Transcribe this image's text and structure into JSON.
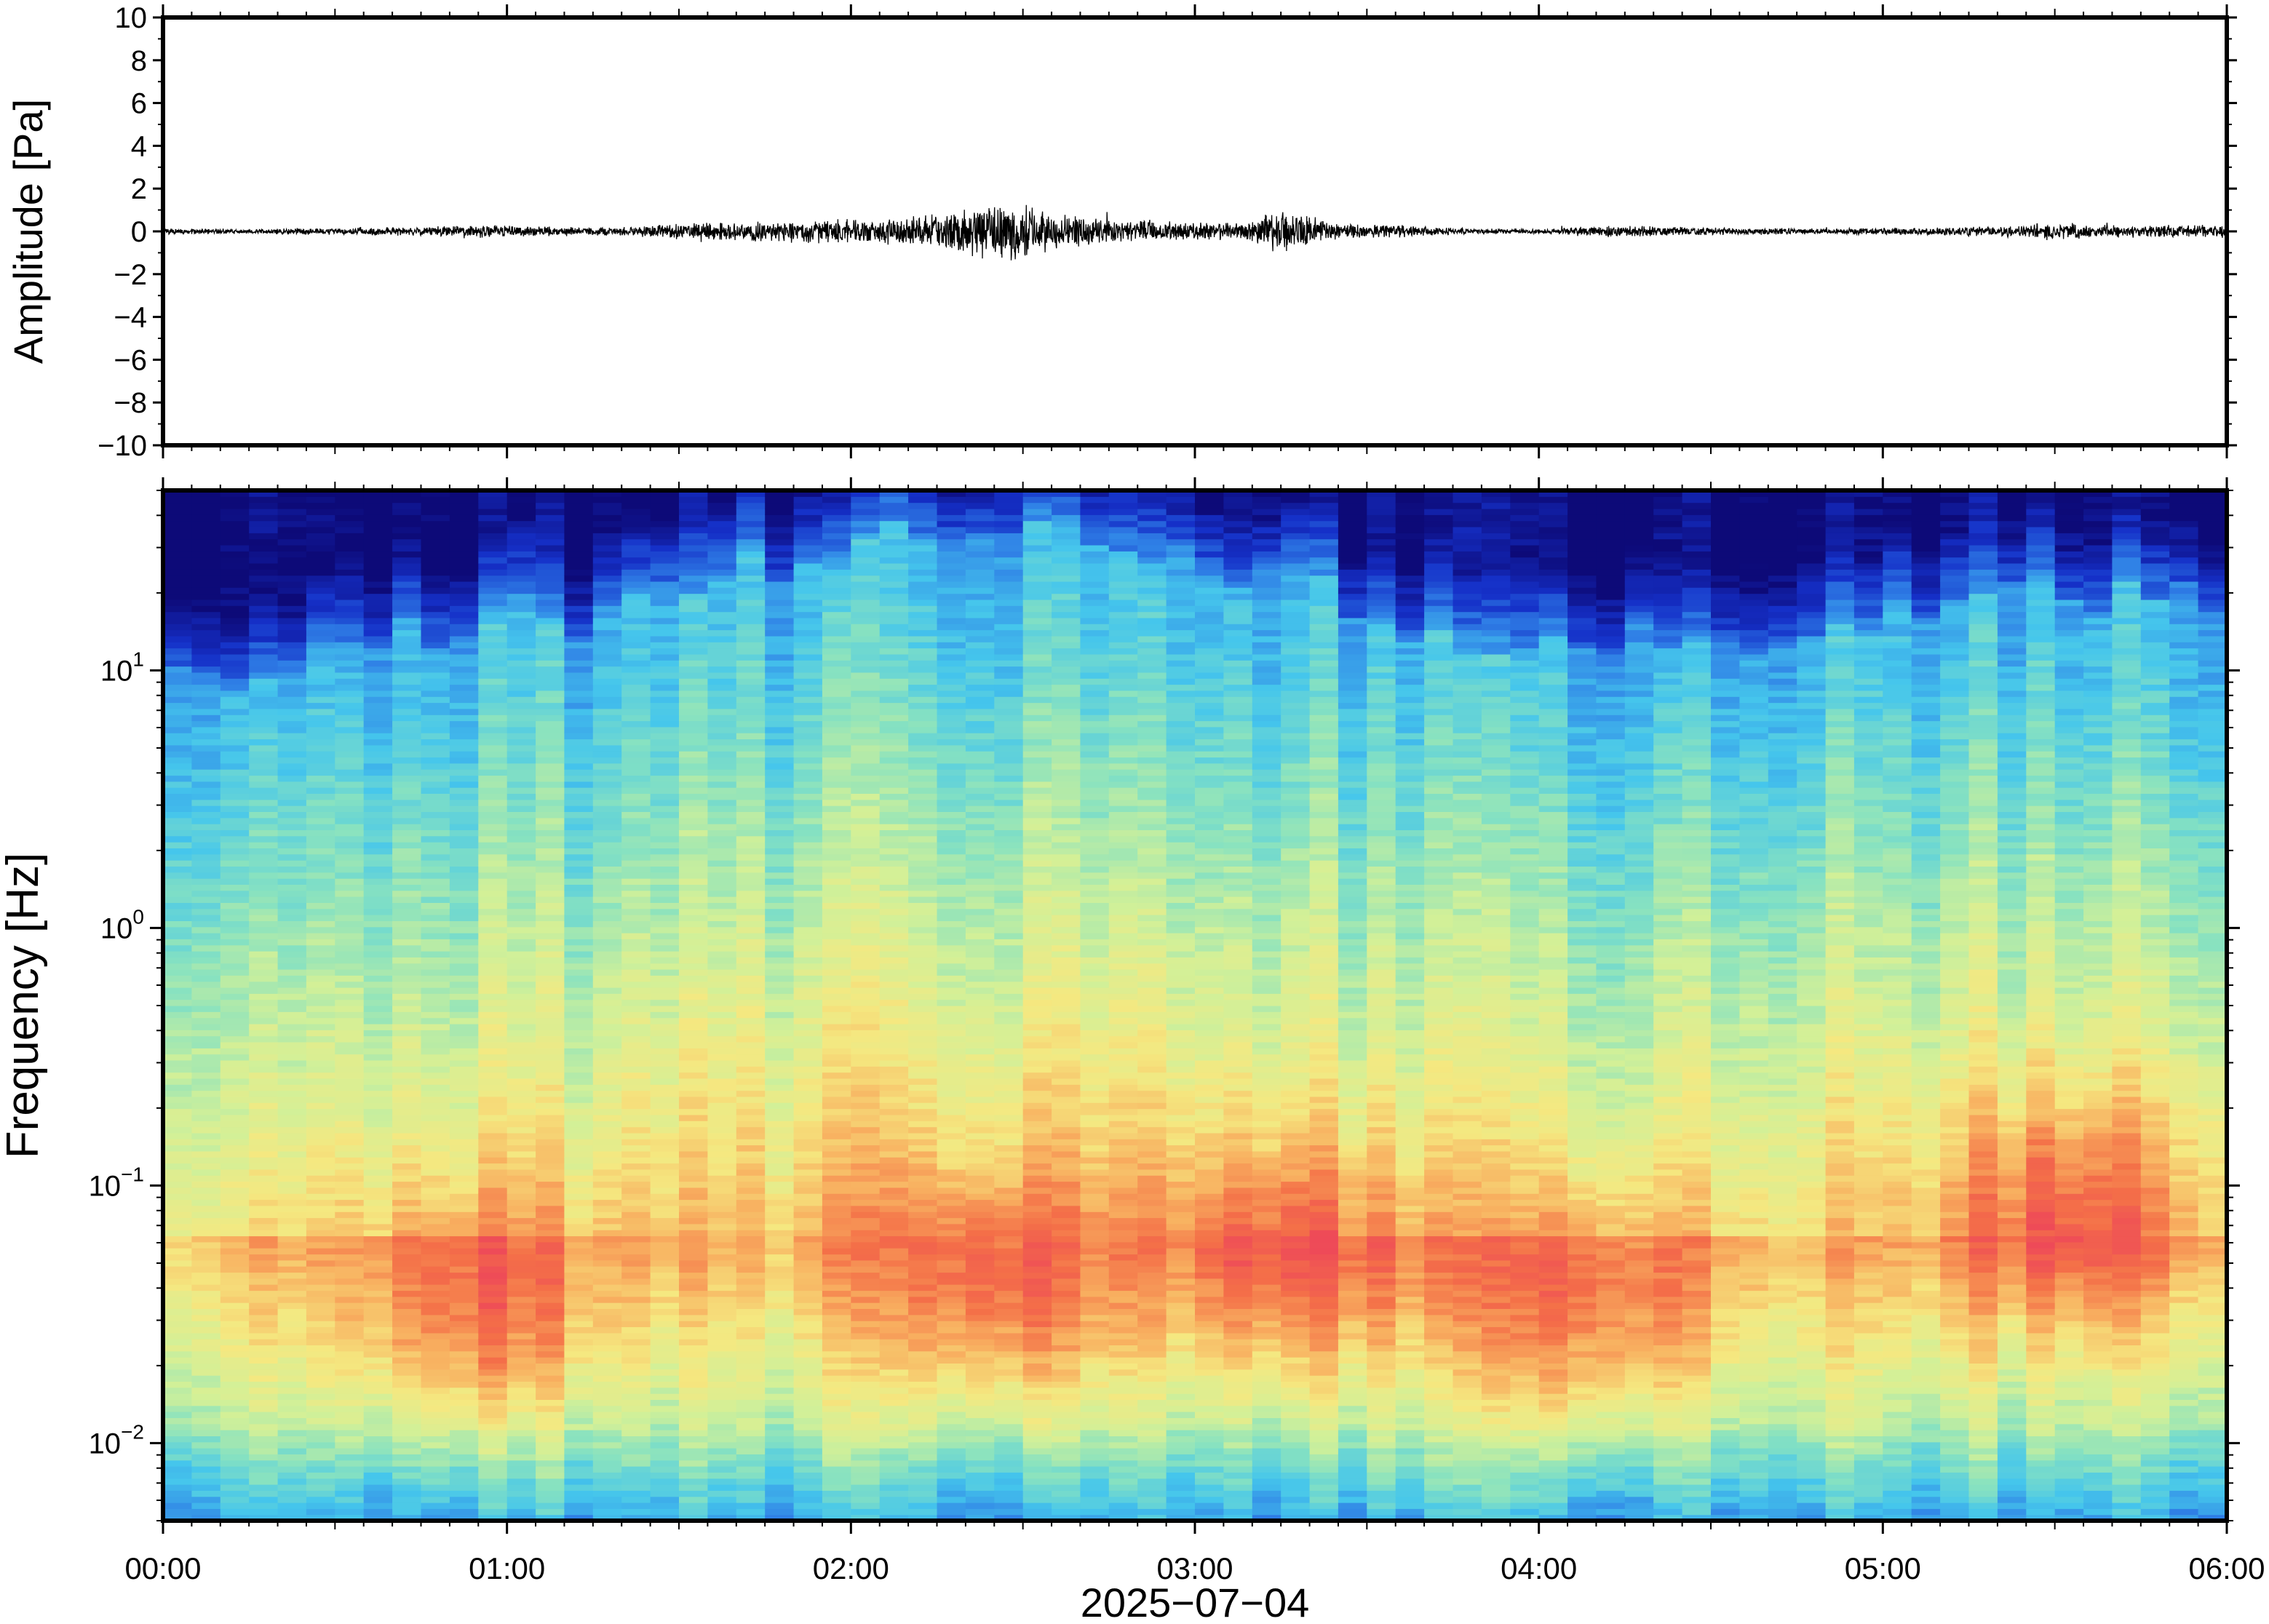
{
  "chart_data": [
    {
      "type": "line",
      "name": "waveform",
      "ylabel": "Amplitude [Pa]",
      "ylim": [
        -10,
        10
      ],
      "yticks": [
        10,
        8,
        6,
        4,
        2,
        0,
        -2,
        -4,
        -6,
        -8,
        -10
      ],
      "ytick_labels": [
        "10",
        "8",
        "6",
        "4",
        "2",
        "0",
        "−2",
        "−4",
        "−6",
        "−8",
        "−10"
      ],
      "x_range_hours": [
        0,
        6
      ],
      "grid": false,
      "series_color": "#000000",
      "envelope": {
        "x_hours": [
          0,
          0.25,
          0.5,
          0.75,
          0.9,
          1.0,
          1.25,
          1.4,
          1.6,
          1.8,
          2.0,
          2.2,
          2.35,
          2.45,
          2.6,
          2.8,
          3.0,
          3.15,
          3.25,
          3.4,
          3.6,
          3.8,
          4.0,
          4.2,
          4.4,
          4.6,
          4.8,
          5.0,
          5.2,
          5.4,
          5.5,
          5.7,
          6.0
        ],
        "amplitude_pa": [
          0.15,
          0.12,
          0.18,
          0.22,
          0.35,
          0.3,
          0.2,
          0.3,
          0.5,
          0.55,
          0.6,
          0.8,
          1.3,
          1.6,
          0.9,
          0.6,
          0.45,
          0.5,
          1.2,
          0.45,
          0.3,
          0.15,
          0.12,
          0.3,
          0.25,
          0.18,
          0.15,
          0.18,
          0.2,
          0.3,
          0.45,
          0.3,
          0.35
        ]
      }
    },
    {
      "type": "heatmap",
      "name": "spectrogram",
      "ylabel": "Frequency [Hz]",
      "yscale": "log",
      "ylim": [
        0.005,
        50
      ],
      "yticks": [
        0.01,
        0.1,
        1,
        10
      ],
      "ytick_labels": [
        {
          "base": "10",
          "exp": "−2"
        },
        {
          "base": "10",
          "exp": "−1"
        },
        {
          "base": "10",
          "exp": "0"
        },
        {
          "base": "10",
          "exp": "1"
        }
      ],
      "xlabel": "2025−07−04",
      "xticks_hours": [
        0,
        1,
        2,
        3,
        4,
        5,
        6
      ],
      "xtick_labels": [
        "00:00",
        "01:00",
        "02:00",
        "03:00",
        "04:00",
        "05:00",
        "06:00"
      ],
      "colormap": [
        "#0d0a78",
        "#1530c8",
        "#2f7fe6",
        "#45c6ec",
        "#88e2c0",
        "#d2f098",
        "#f5e880",
        "#f8b060",
        "#f47048",
        "#ee4a58"
      ],
      "upper_cutoff_hz": {
        "x_hours": [
          0,
          0.5,
          1.0,
          1.3,
          1.6,
          2.0,
          2.3,
          2.5,
          2.8,
          3.0,
          3.3,
          3.5,
          3.8,
          4.0,
          4.3,
          4.6,
          5.0,
          5.5,
          6.0
        ],
        "freq_hz": [
          9,
          11,
          18,
          15,
          25,
          28,
          38,
          35,
          28,
          25,
          26,
          16,
          11,
          12,
          15,
          14,
          16,
          20,
          18
        ]
      },
      "energy_peaks": [
        {
          "x_hours": 2.4,
          "freq_hz": 0.035
        },
        {
          "x_hours": 3.27,
          "freq_hz": 0.05
        },
        {
          "x_hours": 0.9,
          "freq_hz": 0.03
        },
        {
          "x_hours": 4.15,
          "freq_hz": 0.03
        },
        {
          "x_hours": 5.55,
          "freq_hz": 0.08
        }
      ]
    }
  ]
}
